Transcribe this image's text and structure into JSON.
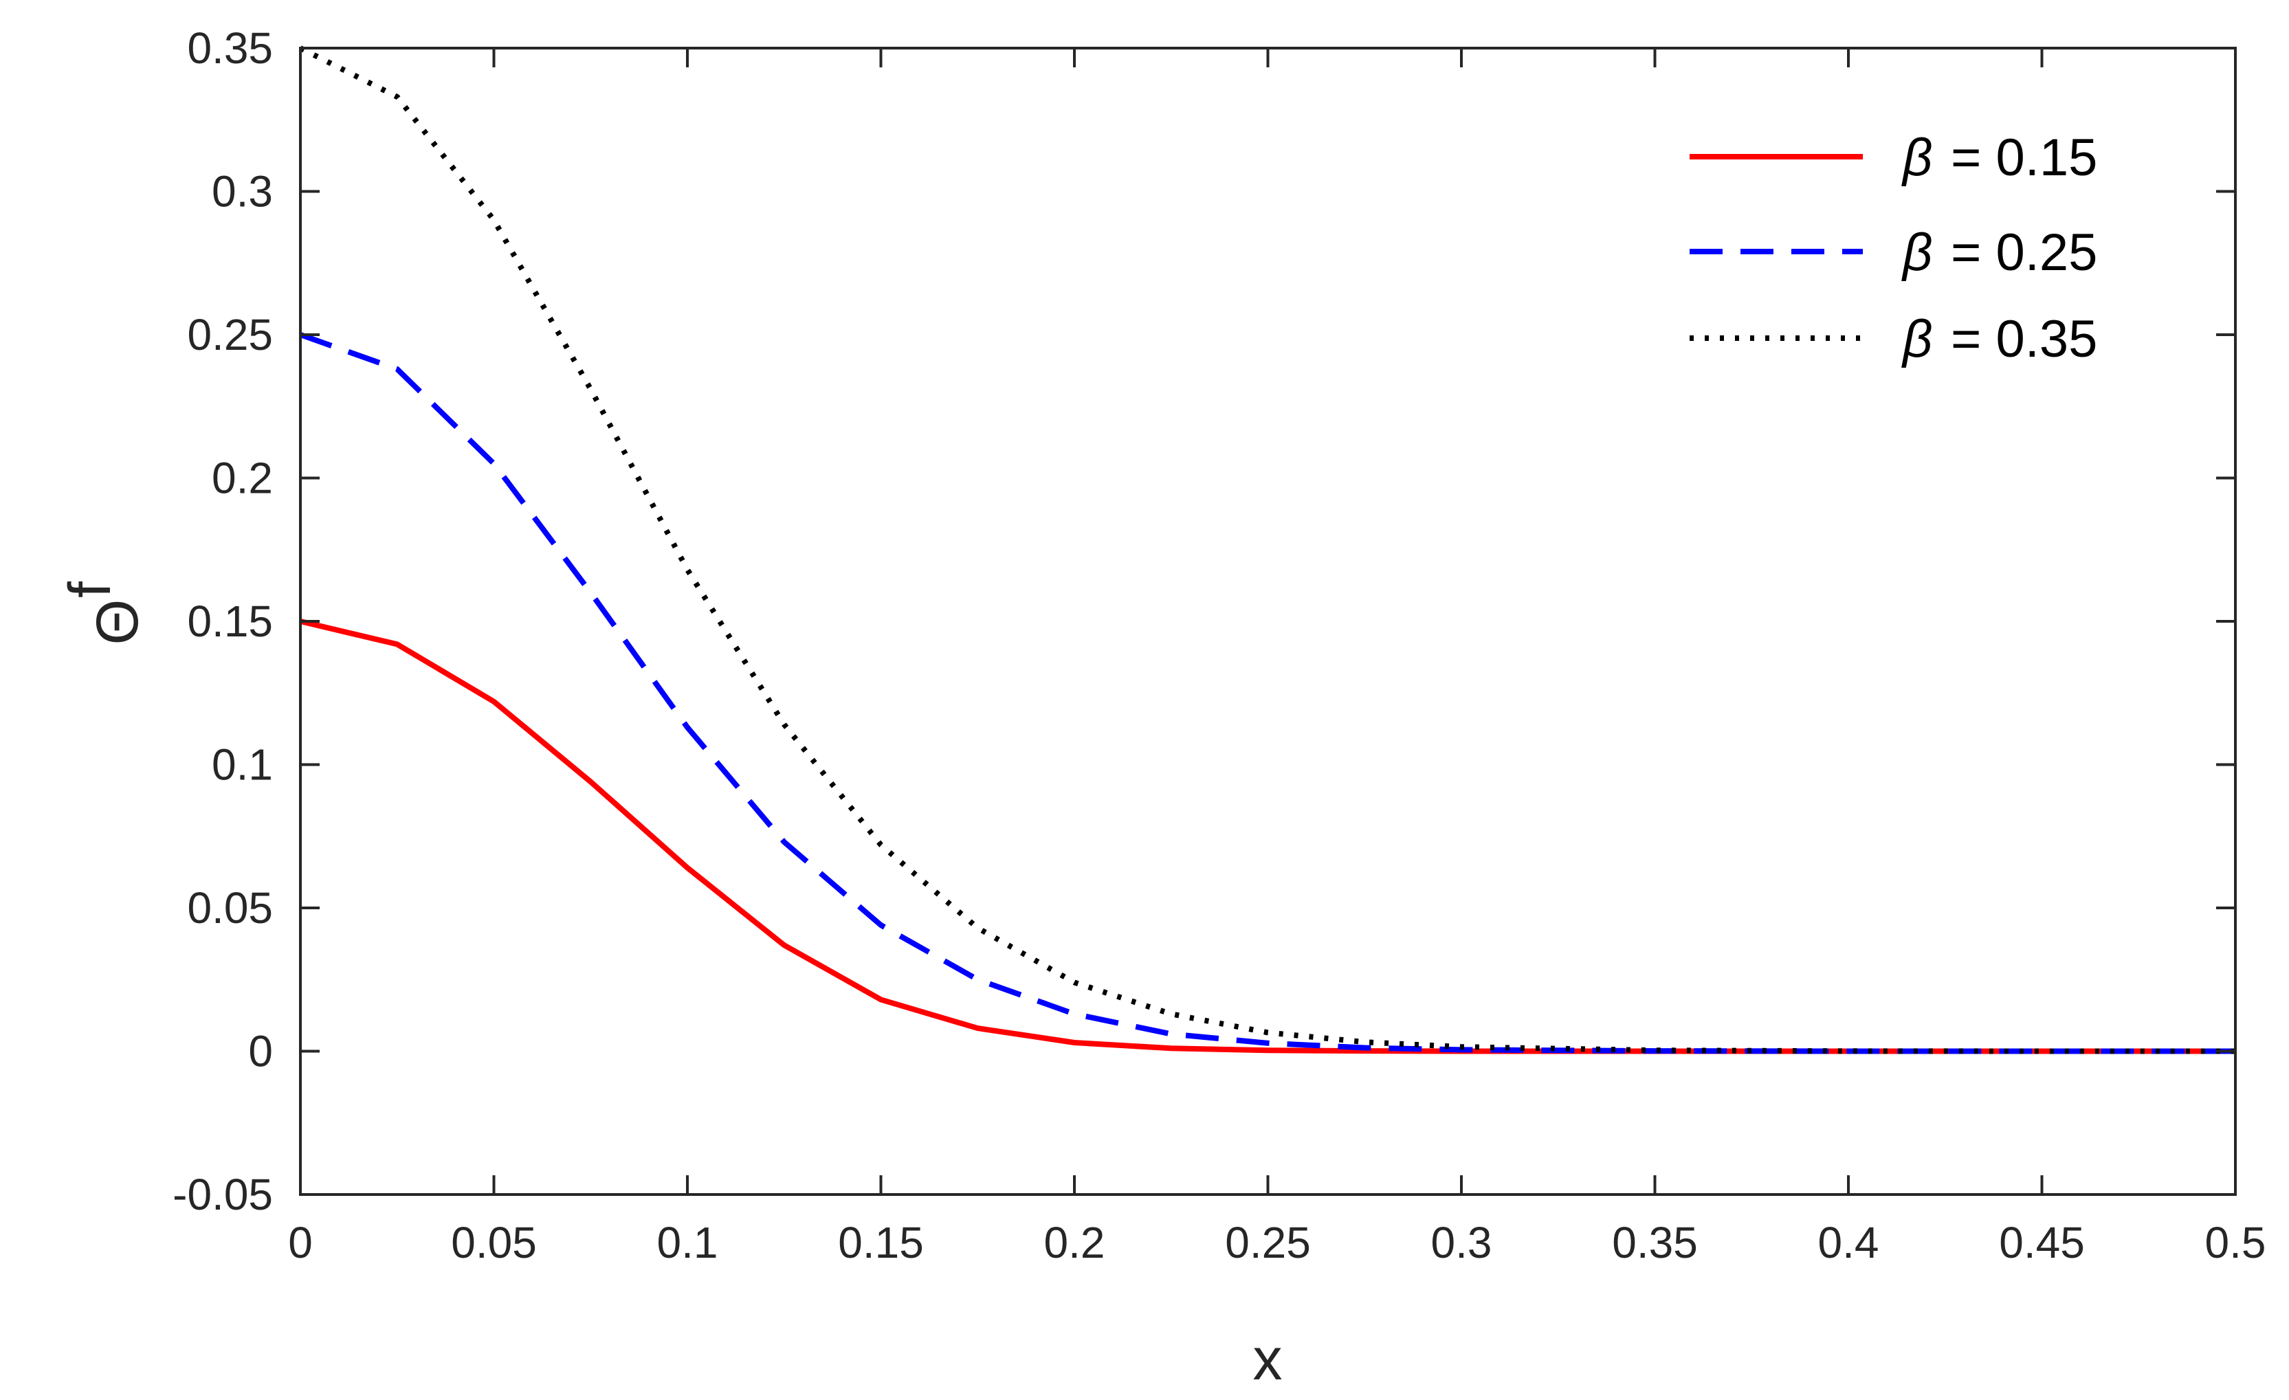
{
  "chart_data": {
    "type": "line",
    "title": "",
    "xlabel": "x",
    "ylabel_symbol": "Θ",
    "ylabel_superscript": "f",
    "xlim": [
      0,
      0.5
    ],
    "ylim": [
      -0.05,
      0.35
    ],
    "xticks": [
      0,
      0.05,
      0.1,
      0.15,
      0.2,
      0.25,
      0.3,
      0.35,
      0.4,
      0.45,
      0.5
    ],
    "xtick_labels": [
      "0",
      "0.05",
      "0.1",
      "0.15",
      "0.2",
      "0.25",
      "0.3",
      "0.35",
      "0.4",
      "0.45",
      "0.5"
    ],
    "yticks": [
      -0.05,
      0,
      0.05,
      0.1,
      0.15,
      0.2,
      0.25,
      0.3,
      0.35
    ],
    "ytick_labels": [
      "-0.05",
      "0",
      "0.05",
      "0.1",
      "0.15",
      "0.2",
      "0.25",
      "0.3",
      "0.35"
    ],
    "grid": false,
    "legend_position": "top-right",
    "x": [
      0,
      0.025,
      0.05,
      0.075,
      0.1,
      0.125,
      0.15,
      0.175,
      0.2,
      0.225,
      0.25,
      0.275,
      0.3,
      0.35,
      0.4,
      0.45,
      0.5
    ],
    "series": [
      {
        "name": "β = 0.15",
        "legend_symbol": "β",
        "legend_value": "= 0.15",
        "color": "#ff0000",
        "style": "solid",
        "values": [
          0.15,
          0.142,
          0.122,
          0.094,
          0.064,
          0.037,
          0.018,
          0.008,
          0.003,
          0.001,
          0.0003,
          0.0001,
          0,
          0,
          0,
          0,
          0
        ]
      },
      {
        "name": "β = 0.25",
        "legend_symbol": "β",
        "legend_value": "= 0.25",
        "color": "#0000ff",
        "style": "dashed",
        "values": [
          0.25,
          0.238,
          0.205,
          0.16,
          0.113,
          0.073,
          0.044,
          0.025,
          0.013,
          0.006,
          0.0028,
          0.0012,
          0.0005,
          0.0001,
          0,
          0,
          0
        ]
      },
      {
        "name": "β = 0.35",
        "legend_symbol": "β",
        "legend_value": "= 0.35",
        "color": "#000000",
        "style": "dotted",
        "values": [
          0.35,
          0.333,
          0.29,
          0.231,
          0.168,
          0.114,
          0.072,
          0.043,
          0.024,
          0.013,
          0.0065,
          0.0032,
          0.0015,
          0.0003,
          5e-05,
          0,
          0
        ]
      }
    ]
  }
}
